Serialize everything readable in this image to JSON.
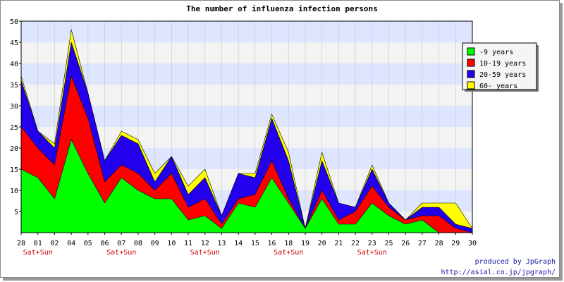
{
  "chart_data": {
    "type": "area",
    "stacked": true,
    "title": "The number of influenza infection persons",
    "xlabel": "",
    "ylabel": "",
    "categories": [
      "28",
      "01",
      "02",
      "04",
      "05",
      "06",
      "07",
      "08",
      "09",
      "10",
      "11",
      "12",
      "13",
      "14",
      "15",
      "16",
      "18",
      "19",
      "20",
      "21",
      "22",
      "23",
      "25",
      "26",
      "27",
      "28",
      "29",
      "30"
    ],
    "weekend_labels": [
      {
        "category_index": 1,
        "text": "Sat+Sun"
      },
      {
        "category_index": 6,
        "text": "Sat+Sun"
      },
      {
        "category_index": 11,
        "text": "Sat+Sun"
      },
      {
        "category_index": 16,
        "text": "Sat+Sun"
      },
      {
        "category_index": 21,
        "text": "Sat+Sun"
      }
    ],
    "ylim": [
      0,
      50
    ],
    "yticks": [
      5,
      10,
      15,
      20,
      25,
      30,
      35,
      40,
      45,
      50
    ],
    "grid": true,
    "band_colors": [
      "#dde5ff",
      "#f3f3f3"
    ],
    "legend_position": "top-right",
    "series": [
      {
        "name": "-9 years",
        "color": "#00ff00",
        "values": [
          15,
          13,
          8,
          22,
          14,
          7,
          13,
          10,
          8,
          8,
          3,
          4,
          1,
          7,
          6,
          13,
          7,
          1,
          8,
          2,
          2,
          7,
          4,
          2,
          3,
          0,
          0,
          0
        ]
      },
      {
        "name": "10-19 years",
        "color": "#ff0000",
        "values": [
          10,
          7,
          8,
          15,
          13,
          5,
          3,
          4,
          2,
          6,
          3,
          4,
          1,
          1,
          3,
          4,
          1,
          0,
          2,
          1,
          3,
          4,
          2,
          1,
          1,
          4,
          1,
          0
        ]
      },
      {
        "name": "20-59 years",
        "color": "#2200ee",
        "values": [
          11,
          4,
          4,
          8,
          6,
          5,
          7,
          7,
          2,
          4,
          3,
          5,
          2,
          6,
          4,
          10,
          9,
          0,
          7,
          4,
          1,
          4,
          1,
          0,
          2,
          2,
          1,
          1
        ]
      },
      {
        "name": "60- years",
        "color": "#ffff00",
        "values": [
          1,
          0,
          1,
          3,
          0,
          0,
          1,
          1,
          2,
          0,
          2,
          2,
          0,
          0,
          1,
          1,
          2,
          0,
          2,
          0,
          0,
          1,
          0,
          0,
          1,
          1,
          5,
          0
        ]
      }
    ]
  },
  "credits": {
    "line1": "produced by JpGraph",
    "line2": "http://asial.co.jp/jpgraph/"
  }
}
